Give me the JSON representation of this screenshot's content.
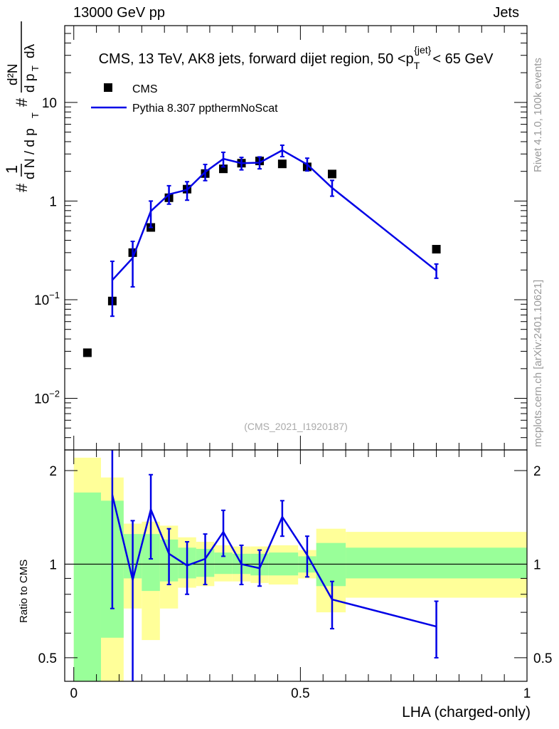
{
  "header": {
    "energy": "13000 GeV pp",
    "category": "Jets"
  },
  "side_labels": {
    "rivet": "Rivet 4.1.0,  100k events",
    "mcplots": "mcplots.cern.ch [arXiv:2401.10621]"
  },
  "colors": {
    "cms": "#000000",
    "mc": "#0000e6",
    "band_outer": "#ffff99",
    "band_inner": "#99ff99"
  },
  "chart_data": [
    {
      "type": "scatter",
      "panel": "main",
      "title_parts": {
        "prefix": "CMS, 13 TeV, AK8 jets, forward dijet region, 50 <p",
        "sub": "T",
        "sup": "{jet}",
        "suffix": "< 65 GeV"
      },
      "ylabel_parts": {
        "hash": "#",
        "one": "1",
        "dN": "d N / d p",
        "T": "T",
        "d2N": "d²N",
        "dpT": "d p",
        "dlam": "dλ"
      },
      "yscale": "log",
      "ylim": [
        0.003,
        60
      ],
      "xlim": [
        -0.02,
        1.0
      ],
      "yticks": [
        {
          "v": 0.01,
          "base": "10",
          "exp": "−2"
        },
        {
          "v": 0.1,
          "base": "10",
          "exp": "−1"
        },
        {
          "v": 1,
          "base": "1",
          "exp": ""
        },
        {
          "v": 10,
          "base": "10",
          "exp": ""
        }
      ],
      "watermark": "(CMS_2021_I1920187)",
      "legend": {
        "position": "top-left",
        "entries": [
          "CMS",
          "Pythia 8.307 ppthermNoScat"
        ]
      },
      "series": [
        {
          "name": "CMS",
          "style": "markers",
          "x": [
            0.03,
            0.085,
            0.13,
            0.17,
            0.21,
            0.25,
            0.29,
            0.33,
            0.37,
            0.41,
            0.46,
            0.515,
            0.57,
            0.8
          ],
          "y": [
            0.029,
            0.097,
            0.3,
            0.54,
            1.08,
            1.32,
            1.9,
            2.12,
            2.42,
            2.55,
            2.38,
            2.22,
            1.88,
            0.325
          ]
        },
        {
          "name": "Pythia 8.307 ppthermNoScat",
          "style": "line",
          "x": [
            0.085,
            0.13,
            0.17,
            0.21,
            0.25,
            0.29,
            0.33,
            0.37,
            0.41,
            0.46,
            0.515,
            0.57,
            0.8
          ],
          "y": [
            0.158,
            0.265,
            0.79,
            1.17,
            1.3,
            1.97,
            2.68,
            2.42,
            2.45,
            3.27,
            2.35,
            1.36,
            0.197
          ],
          "err_lo": [
            0.068,
            0.135,
            0.54,
            0.93,
            1.02,
            1.61,
            2.22,
            2.07,
            2.12,
            2.82,
            2.02,
            1.12,
            0.165
          ],
          "err_hi": [
            0.245,
            0.39,
            1.0,
            1.43,
            1.57,
            2.35,
            3.12,
            2.77,
            2.8,
            3.68,
            2.72,
            1.62,
            0.23
          ]
        }
      ]
    },
    {
      "type": "line",
      "panel": "ratio",
      "ylabel": "Ratio to CMS",
      "yscale": "log",
      "ylim": [
        0.42,
        2.33
      ],
      "xlim": [
        -0.02,
        1.0
      ],
      "yticks": [
        {
          "v": 0.5,
          "label": "0.5"
        },
        {
          "v": 1,
          "label": "1"
        },
        {
          "v": 2,
          "label": "2"
        }
      ],
      "xticks": [
        {
          "v": 0,
          "label": "0"
        },
        {
          "v": 0.5,
          "label": "0.5"
        },
        {
          "v": 1,
          "label": "1"
        }
      ],
      "xlabel": "LHA (charged-only)",
      "reference_line": 1,
      "bands": [
        {
          "x0": 0.0,
          "x1": 0.06,
          "outer": [
            0.42,
            2.2
          ],
          "inner": [
            0.42,
            1.7
          ]
        },
        {
          "x0": 0.06,
          "x1": 0.11,
          "outer": [
            0.42,
            1.9
          ],
          "inner": [
            0.58,
            1.6
          ]
        },
        {
          "x0": 0.11,
          "x1": 0.15,
          "outer": [
            0.72,
            1.35
          ],
          "inner": [
            0.9,
            1.25
          ]
        },
        {
          "x0": 0.15,
          "x1": 0.19,
          "outer": [
            0.57,
            1.37
          ],
          "inner": [
            0.82,
            1.25
          ]
        },
        {
          "x0": 0.19,
          "x1": 0.23,
          "outer": [
            0.72,
            1.33
          ],
          "inner": [
            0.88,
            1.2
          ]
        },
        {
          "x0": 0.23,
          "x1": 0.27,
          "outer": [
            0.84,
            1.22
          ],
          "inner": [
            0.9,
            1.13
          ]
        },
        {
          "x0": 0.27,
          "x1": 0.31,
          "outer": [
            0.85,
            1.18
          ],
          "inner": [
            0.91,
            1.12
          ]
        },
        {
          "x0": 0.31,
          "x1": 0.35,
          "outer": [
            0.88,
            1.15
          ],
          "inner": [
            0.93,
            1.09
          ]
        },
        {
          "x0": 0.35,
          "x1": 0.39,
          "outer": [
            0.88,
            1.14
          ],
          "inner": [
            0.93,
            1.08
          ]
        },
        {
          "x0": 0.39,
          "x1": 0.43,
          "outer": [
            0.87,
            1.14
          ],
          "inner": [
            0.92,
            1.08
          ]
        },
        {
          "x0": 0.43,
          "x1": 0.495,
          "outer": [
            0.86,
            1.15
          ],
          "inner": [
            0.92,
            1.09
          ]
        },
        {
          "x0": 0.495,
          "x1": 0.535,
          "outer": [
            0.9,
            1.11
          ],
          "inner": [
            0.94,
            1.06
          ]
        },
        {
          "x0": 0.535,
          "x1": 0.6,
          "outer": [
            0.7,
            1.3
          ],
          "inner": [
            0.85,
            1.17
          ]
        },
        {
          "x0": 0.6,
          "x1": 1.0,
          "outer": [
            0.78,
            1.27
          ],
          "inner": [
            0.9,
            1.13
          ]
        }
      ],
      "series": [
        {
          "name": "Pythia 8.307 ppthermNoScat / CMS",
          "x": [
            0.085,
            0.13,
            0.17,
            0.21,
            0.25,
            0.29,
            0.33,
            0.37,
            0.41,
            0.46,
            0.515,
            0.57,
            0.8
          ],
          "y": [
            1.67,
            0.89,
            1.5,
            1.08,
            0.99,
            1.04,
            1.27,
            1.0,
            0.97,
            1.42,
            1.07,
            0.77,
            0.63
          ],
          "err_lo": [
            0.72,
            0.39,
            1.04,
            0.86,
            0.8,
            0.86,
            1.06,
            0.86,
            0.85,
            1.23,
            0.91,
            0.62,
            0.5
          ],
          "err_hi": [
            2.4,
            1.38,
            1.94,
            1.3,
            1.18,
            1.25,
            1.49,
            1.15,
            1.11,
            1.6,
            1.23,
            0.88,
            0.76
          ]
        }
      ]
    }
  ]
}
